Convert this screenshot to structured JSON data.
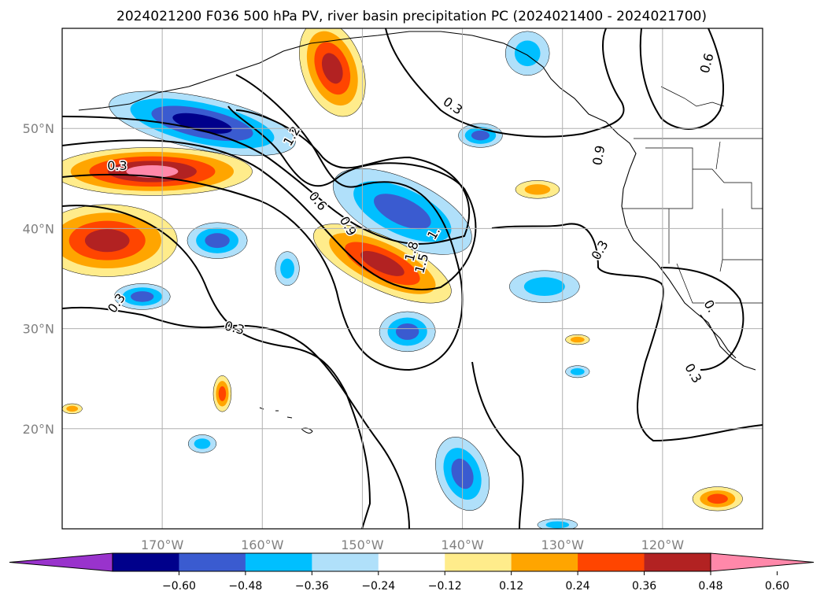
{
  "chart_data": {
    "type": "heatmap",
    "title": "2024021200 F036 500 hPa PV, river basin precipitation PC (2024021400 - 2024021700)",
    "grid": true,
    "x_axis": {
      "min": -180,
      "max": -110,
      "ticks": [
        -170,
        -160,
        -150,
        -140,
        -130,
        -120
      ],
      "tick_labels": [
        "170°W",
        "160°W",
        "150°W",
        "140°W",
        "130°W",
        "120°W"
      ]
    },
    "y_axis": {
      "min": 10,
      "max": 60,
      "ticks": [
        20,
        30,
        40,
        50
      ],
      "tick_labels": [
        "20°N",
        "30°N",
        "40°N",
        "50°N"
      ]
    },
    "colorbar": {
      "levels": [
        -0.6,
        -0.48,
        -0.36,
        -0.24,
        -0.12,
        0.12,
        0.24,
        0.36,
        0.48,
        0.6
      ],
      "tick_labels": [
        "−0.60",
        "−0.48",
        "−0.36",
        "−0.24",
        "−0.12",
        "0.12",
        "0.24",
        "0.36",
        "0.48",
        "0.60"
      ],
      "colors": [
        "#9933cc",
        "#00008b",
        "#3a5bd0",
        "#00bfff",
        "#b0e0fa",
        "#ffffff",
        "#ffec8b",
        "#ffa500",
        "#ff4500",
        "#b22222",
        "#ff88aa"
      ],
      "extend": "both"
    },
    "contour_levels": [
      0.3,
      0.6,
      0.9,
      1.2,
      1.5,
      1.8
    ],
    "contour_labels": [
      {
        "text": "0.3",
        "lon": -141,
        "lat": 52.2,
        "angle": 35
      },
      {
        "text": "0.6",
        "lon": -115.5,
        "lat": 56.5,
        "angle": -75
      },
      {
        "text": "1.2",
        "lon": -157,
        "lat": 49.2,
        "angle": -60
      },
      {
        "text": "0.3",
        "lon": -174.5,
        "lat": 46.2,
        "angle": 0
      },
      {
        "text": "0.6",
        "lon": -154.5,
        "lat": 42.7,
        "angle": 50
      },
      {
        "text": "0.9",
        "lon": -151.5,
        "lat": 40.2,
        "angle": 60
      },
      {
        "text": "0.3",
        "lon": -174.5,
        "lat": 32.5,
        "angle": -55
      },
      {
        "text": "0.3",
        "lon": -162.8,
        "lat": 30.0,
        "angle": 15
      },
      {
        "text": "1.8",
        "lon": -145,
        "lat": 37.7,
        "angle": -75
      },
      {
        "text": "1.5",
        "lon": -144,
        "lat": 36.5,
        "angle": -75
      },
      {
        "text": "1.",
        "lon": -142.8,
        "lat": 39.5,
        "angle": -60
      },
      {
        "text": "0.3",
        "lon": -126.2,
        "lat": 37.8,
        "angle": -60
      },
      {
        "text": "0.9",
        "lon": -126.3,
        "lat": 47.3,
        "angle": -80
      },
      {
        "text": "0.3",
        "lon": -117,
        "lat": 25.5,
        "angle": 60
      },
      {
        "text": "0.",
        "lon": -115.3,
        "lat": 32.2,
        "angle": 60
      }
    ],
    "shaded_regions": [
      {
        "lon": -166,
        "lat": 50.5,
        "rx": 9.5,
        "ry": 2.6,
        "angle": 12,
        "levels": [
          -0.12,
          -0.24,
          -0.36,
          -0.48
        ]
      },
      {
        "lon": -171,
        "lat": 45.7,
        "rx": 10,
        "ry": 2.4,
        "angle": 0,
        "levels": [
          0.12,
          0.24,
          0.36,
          0.48,
          0.6
        ]
      },
      {
        "lon": -175.5,
        "lat": 38.8,
        "rx": 7,
        "ry": 3.6,
        "angle": 0,
        "levels": [
          0.12,
          0.24,
          0.36,
          0.48
        ]
      },
      {
        "lon": -164.5,
        "lat": 38.8,
        "rx": 3,
        "ry": 1.8,
        "angle": 0,
        "levels": [
          -0.12,
          -0.24,
          -0.36
        ]
      },
      {
        "lon": -146,
        "lat": 41.7,
        "rx": 7.5,
        "ry": 3.2,
        "angle": 25,
        "levels": [
          -0.12,
          -0.24,
          -0.36
        ]
      },
      {
        "lon": -148,
        "lat": 36.5,
        "rx": 7.5,
        "ry": 2.6,
        "angle": 25,
        "levels": [
          0.12,
          0.24,
          0.36,
          0.48
        ]
      },
      {
        "lon": -153,
        "lat": 56,
        "rx": 3,
        "ry": 5,
        "angle": -20,
        "levels": [
          0.12,
          0.24,
          0.36,
          0.48
        ]
      },
      {
        "lon": -133.5,
        "lat": 57.5,
        "rx": 2.2,
        "ry": 2.2,
        "angle": 0,
        "levels": [
          -0.12,
          -0.24
        ]
      },
      {
        "lon": -138.2,
        "lat": 49.3,
        "rx": 2.2,
        "ry": 1.2,
        "angle": 0,
        "levels": [
          -0.12,
          -0.24,
          -0.36
        ]
      },
      {
        "lon": -132.5,
        "lat": 43.9,
        "rx": 2.2,
        "ry": 0.9,
        "angle": 0,
        "levels": [
          0.12,
          0.24
        ]
      },
      {
        "lon": -145.5,
        "lat": 29.7,
        "rx": 2.8,
        "ry": 2.0,
        "angle": 0,
        "levels": [
          -0.12,
          -0.24,
          -0.36
        ]
      },
      {
        "lon": -131.8,
        "lat": 34.2,
        "rx": 3.5,
        "ry": 1.6,
        "angle": 0,
        "levels": [
          -0.12,
          -0.24
        ]
      },
      {
        "lon": -172,
        "lat": 33.2,
        "rx": 2.8,
        "ry": 1.3,
        "angle": 0,
        "levels": [
          -0.12,
          -0.24,
          -0.36
        ]
      },
      {
        "lon": -140,
        "lat": 15.5,
        "rx": 2.5,
        "ry": 3.8,
        "angle": -20,
        "levels": [
          -0.12,
          -0.24,
          -0.36
        ]
      },
      {
        "lon": -164,
        "lat": 23.5,
        "rx": 0.9,
        "ry": 1.8,
        "angle": 0,
        "levels": [
          0.12,
          0.24,
          0.36
        ]
      },
      {
        "lon": -114.5,
        "lat": 13,
        "rx": 2.5,
        "ry": 1.2,
        "angle": 0,
        "levels": [
          0.12,
          0.24,
          0.36
        ]
      },
      {
        "lon": -157.5,
        "lat": 36,
        "rx": 1.2,
        "ry": 1.7,
        "angle": 0,
        "levels": [
          -0.12,
          -0.24
        ]
      },
      {
        "lon": -166,
        "lat": 18.5,
        "rx": 1.4,
        "ry": 0.9,
        "angle": 0,
        "levels": [
          -0.12,
          -0.24
        ]
      },
      {
        "lon": -128.5,
        "lat": 28.9,
        "rx": 1.2,
        "ry": 0.5,
        "angle": 0,
        "levels": [
          0.12,
          0.24
        ]
      },
      {
        "lon": -128.5,
        "lat": 25.7,
        "rx": 1.2,
        "ry": 0.6,
        "angle": 0,
        "levels": [
          -0.12,
          -0.24
        ]
      },
      {
        "lon": -179,
        "lat": 22,
        "rx": 1.0,
        "ry": 0.5,
        "angle": 0,
        "levels": [
          0.12,
          0.24
        ]
      },
      {
        "lon": -130.5,
        "lat": 10.4,
        "rx": 2.0,
        "ry": 0.6,
        "angle": 0,
        "levels": [
          -0.12,
          -0.24
        ]
      }
    ]
  }
}
